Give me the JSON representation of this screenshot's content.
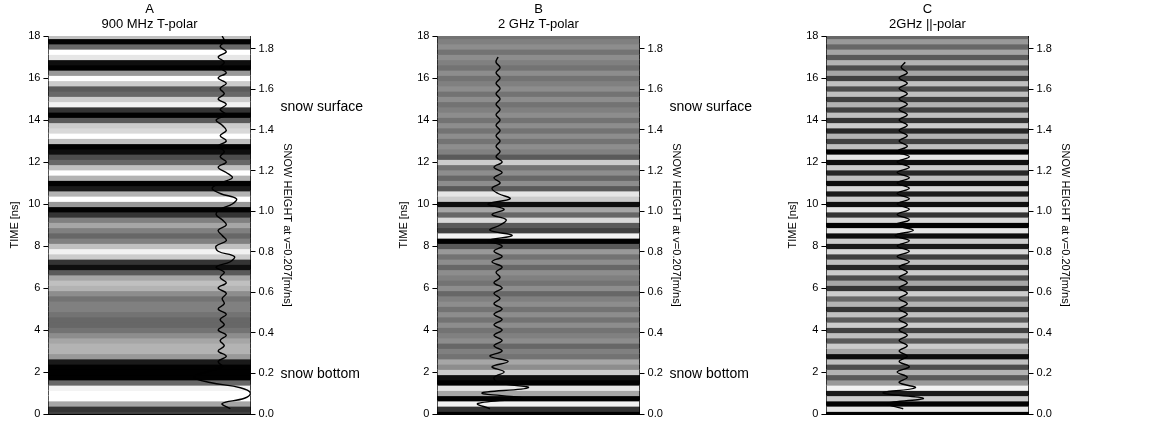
{
  "chart_data": [
    {
      "type": "line",
      "panel": "A",
      "title": "900 MHz T-polar",
      "y_label": "TIME [ns]",
      "y2_label": "SNOW HEIGHT at v=0.207[m/ns]",
      "xlim": [
        0,
        1
      ],
      "ylim": [
        0,
        18
      ],
      "yticks": [
        0,
        2,
        4,
        6,
        8,
        10,
        12,
        14,
        16,
        18
      ],
      "y2lim": [
        0,
        1.863
      ],
      "y2ticks": [
        {
          "value": 0,
          "label": "0.0"
        },
        0.2,
        0.4,
        0.6,
        0.8,
        {
          "value": 1,
          "label": "1.0"
        },
        1.2,
        1.4,
        1.6,
        1.8
      ],
      "grid": false,
      "tick_labels": "y",
      "color": "#000000",
      "annotations": [
        {
          "text": "snow surface",
          "y": 14.6
        },
        {
          "text": "snow bottom",
          "y": 1.9
        }
      ],
      "time": [
        0,
        0.25,
        0.5,
        0.75,
        1,
        1.25,
        1.5,
        1.75,
        2,
        2.25,
        2.5,
        2.75,
        3,
        3.25,
        3.5,
        3.75,
        4,
        4.25,
        4.5,
        4.75,
        5,
        5.25,
        5.5,
        5.75,
        6,
        6.25,
        6.5,
        6.75,
        7,
        7.25,
        7.5,
        7.75,
        8,
        8.25,
        8.5,
        8.75,
        9,
        9.25,
        9.5,
        9.75,
        10,
        10.25,
        10.5,
        10.75,
        11,
        11.25,
        11.5,
        11.75,
        12,
        12.25,
        12.5,
        12.75,
        13,
        13.25,
        13.5,
        13.75,
        14,
        14.25,
        14.5,
        14.75,
        15,
        15.25,
        15.5,
        15.75,
        16,
        16.25,
        16.5,
        16.75,
        17,
        17.25,
        17.5,
        17.75,
        18
      ],
      "trace": [
        null,
        0.9,
        0.86,
        0.97,
        1.0,
        0.95,
        0.8,
        0.72,
        0.78,
        0.86,
        0.84,
        0.88,
        0.84,
        0.87,
        0.85,
        0.88,
        0.84,
        0.87,
        0.85,
        0.88,
        0.84,
        0.87,
        0.86,
        0.88,
        0.84,
        0.88,
        0.85,
        0.87,
        0.83,
        0.9,
        0.92,
        0.84,
        0.83,
        0.88,
        0.86,
        0.84,
        0.88,
        0.86,
        0.83,
        0.85,
        0.91,
        0.93,
        0.85,
        0.81,
        0.85,
        0.91,
        0.88,
        0.84,
        0.88,
        0.85,
        0.87,
        0.84,
        0.88,
        0.85,
        0.88,
        0.86,
        0.83,
        0.88,
        0.85,
        0.88,
        0.84,
        0.87,
        0.85,
        0.88,
        0.84,
        0.88,
        0.85,
        0.87,
        0.84,
        0.88,
        0.85,
        0.87,
        0.86
      ],
      "image": [
        -0.5,
        -0.6,
        0.3,
        1,
        1,
        0.9,
        -0.2,
        -1,
        -1,
        -1,
        -0.8,
        0.2,
        0.4,
        0.4,
        0.3,
        0.1,
        -0.1,
        -0.2,
        -0.2,
        -0.1,
        0,
        0,
        -0.1,
        0.1,
        0.4,
        0.5,
        0.3,
        -0.3,
        -0.9,
        -0.6,
        0.6,
        0.9,
        0.5,
        0,
        -0.2,
        0,
        0.3,
        0,
        -0.6,
        -1,
        0.2,
        1,
        0.4,
        -0.8,
        -1,
        0.4,
        1,
        0.5,
        -0.2,
        -0.4,
        -0.9,
        -1,
        0.5,
        1,
        0.7,
        0.6,
        -0.3,
        -1,
        -0.6,
        0.9,
        0.6,
        -0.2,
        -0.3,
        0.6,
        1,
        0.2,
        -1,
        -0.9,
        0.8,
        1,
        -0.2,
        -1,
        0.5
      ]
    },
    {
      "type": "line",
      "panel": "B",
      "title": "2 GHz T-polar",
      "y_label": "TIME [ns]",
      "y2_label": "SNOW HEIGHT at v=0.207[m/ns]",
      "xlim": [
        0,
        1
      ],
      "ylim": [
        0,
        18
      ],
      "yticks": [
        0,
        2,
        4,
        6,
        8,
        10,
        12,
        14,
        16,
        18
      ],
      "y2lim": [
        0,
        1.863
      ],
      "y2ticks": [
        {
          "value": 0,
          "label": "0.0"
        },
        0.2,
        0.4,
        0.6,
        0.8,
        {
          "value": 1,
          "label": "1.0"
        },
        1.2,
        1.4,
        1.6,
        1.8
      ],
      "grid": false,
      "tick_labels": "y",
      "color": "#000000",
      "annotations": [
        {
          "text": "snow surface",
          "y": 14.6
        },
        {
          "text": "snow bottom",
          "y": 1.9
        }
      ],
      "time": [
        0,
        0.25,
        0.5,
        0.75,
        1,
        1.25,
        1.5,
        1.75,
        2,
        2.25,
        2.5,
        2.75,
        3,
        3.25,
        3.5,
        3.75,
        4,
        4.25,
        4.5,
        4.75,
        5,
        5.25,
        5.5,
        5.75,
        6,
        6.25,
        6.5,
        6.75,
        7,
        7.25,
        7.5,
        7.75,
        8,
        8.25,
        8.5,
        8.75,
        9,
        9.25,
        9.5,
        9.75,
        10,
        10.25,
        10.5,
        10.75,
        11,
        11.25,
        11.5,
        11.75,
        12,
        12.25,
        12.5,
        12.75,
        13,
        13.25,
        13.5,
        13.75,
        14,
        14.25,
        14.5,
        14.75,
        15,
        15.25,
        15.5,
        15.75,
        16,
        16.25,
        16.5,
        16.75,
        17,
        17.25,
        17.5,
        17.75,
        18
      ],
      "trace": [
        null,
        0.26,
        0.2,
        0.42,
        0.22,
        0.45,
        0.3,
        0.28,
        0.33,
        0.27,
        0.35,
        0.26,
        0.32,
        0.28,
        0.32,
        0.28,
        0.32,
        0.28,
        0.32,
        0.28,
        0.32,
        0.28,
        0.31,
        0.28,
        0.32,
        0.28,
        0.31,
        0.29,
        0.32,
        0.27,
        0.32,
        0.28,
        0.32,
        0.25,
        0.37,
        0.26,
        0.31,
        0.34,
        0.27,
        0.33,
        0.25,
        0.36,
        0.3,
        0.27,
        0.31,
        0.28,
        0.32,
        0.28,
        0.32,
        0.29,
        0.31,
        0.29,
        0.31,
        0.29,
        0.31,
        0.29,
        0.31,
        0.29,
        0.31,
        0.29,
        0.31,
        0.29,
        0.31,
        0.29,
        0.31,
        0.29,
        0.31,
        0.29,
        0.3,
        null,
        null,
        null,
        null
      ],
      "image": [
        -1,
        -0.6,
        0.9,
        -1,
        0.3,
        0.8,
        -1,
        -0.9,
        0.6,
        0.1,
        0.3,
        -0.1,
        0,
        -0.2,
        0.1,
        0,
        -0.1,
        0.1,
        -0.1,
        0.1,
        -0.1,
        0.1,
        0,
        -0.2,
        0.1,
        -0.1,
        0,
        0.1,
        -0.2,
        0.1,
        -0.1,
        0.2,
        -0.3,
        -1,
        0.9,
        -0.5,
        -0.3,
        0.7,
        -0.2,
        0.3,
        -0.9,
        0.6,
        0.8,
        -0.3,
        0.1,
        -0.2,
        0.1,
        -0.1,
        0.6,
        -0.3,
        0,
        0.1,
        -0.1,
        0.1,
        -0.1,
        0.1,
        -0.1,
        0.1,
        0,
        -0.1,
        0.1,
        -0.1,
        0.1,
        0,
        -0.1,
        0.1,
        -0.1,
        0,
        0.1,
        -0.1,
        0.1,
        0,
        -0.1
      ]
    },
    {
      "type": "line",
      "panel": "C",
      "title": "2GHz ||-polar",
      "y_label": "TIME [ns]",
      "y2_label": "SNOW HEIGHT at v=0.207[m/ns]",
      "xlim": [
        0,
        1
      ],
      "ylim": [
        0,
        18
      ],
      "yticks": [
        0,
        2,
        4,
        6,
        8,
        10,
        12,
        14,
        16,
        18
      ],
      "y2lim": [
        0,
        1.863
      ],
      "y2ticks": [
        {
          "value": 0,
          "label": "0.0"
        },
        0.2,
        0.4,
        0.6,
        0.8,
        {
          "value": 1,
          "label": "1.0"
        },
        1.2,
        1.4,
        1.6,
        1.8
      ],
      "grid": false,
      "tick_labels": "y",
      "color": "#000000",
      "time": [
        0,
        0.25,
        0.5,
        0.75,
        1,
        1.25,
        1.5,
        1.75,
        2,
        2.25,
        2.5,
        2.75,
        3,
        3.25,
        3.5,
        3.75,
        4,
        4.25,
        4.5,
        4.75,
        5,
        5.25,
        5.5,
        5.75,
        6,
        6.25,
        6.5,
        6.75,
        7,
        7.25,
        7.5,
        7.75,
        8,
        8.25,
        8.5,
        8.75,
        9,
        9.25,
        9.5,
        9.75,
        10,
        10.25,
        10.5,
        10.75,
        11,
        11.25,
        11.5,
        11.75,
        12,
        12.25,
        12.5,
        12.75,
        13,
        13.25,
        13.5,
        13.75,
        14,
        14.25,
        14.5,
        14.75,
        15,
        15.25,
        15.5,
        15.75,
        16,
        16.25,
        16.5,
        16.75,
        17,
        17.25,
        17.5,
        17.75,
        18
      ],
      "trace": [
        null,
        0.38,
        0.3,
        0.48,
        0.28,
        0.44,
        0.36,
        0.4,
        0.35,
        0.41,
        0.36,
        0.4,
        0.36,
        0.4,
        0.36,
        0.4,
        0.36,
        0.4,
        0.36,
        0.4,
        0.36,
        0.4,
        0.36,
        0.4,
        0.36,
        0.4,
        0.36,
        0.4,
        0.36,
        0.41,
        0.35,
        0.41,
        0.35,
        0.41,
        0.34,
        0.43,
        0.34,
        0.41,
        0.35,
        0.41,
        0.35,
        0.41,
        0.35,
        0.41,
        0.35,
        0.41,
        0.35,
        0.41,
        0.35,
        0.41,
        0.35,
        0.4,
        0.36,
        0.4,
        0.36,
        0.4,
        0.36,
        0.4,
        0.36,
        0.4,
        0.36,
        0.4,
        0.36,
        0.4,
        0.36,
        0.4,
        0.37,
        0.39,
        null,
        null,
        null,
        null,
        null
      ],
      "image": [
        -1,
        0.8,
        -1,
        0.6,
        -0.8,
        0.9,
        0.2,
        -0.3,
        0.4,
        -0.4,
        0.5,
        -0.9,
        0.3,
        0.6,
        -0.3,
        0.5,
        -0.5,
        0.6,
        -0.3,
        0.5,
        -0.6,
        0.4,
        -0.2,
        0.6,
        -0.6,
        0.3,
        -0.4,
        0.6,
        -0.7,
        0.5,
        -0.5,
        0.7,
        -0.8,
        0.6,
        -0.9,
        0.8,
        -1,
        0.7,
        -0.6,
        0.8,
        -0.9,
        0.6,
        -0.8,
        0.7,
        -0.9,
        0.5,
        -0.7,
        0.6,
        -0.9,
        0.8,
        -1,
        0.5,
        -0.5,
        0.4,
        -0.7,
        0.6,
        -0.6,
        0.5,
        -0.5,
        0.4,
        -0.5,
        0.5,
        -0.4,
        0.5,
        -0.5,
        0.3,
        -0.4,
        0.4,
        -0.3,
        0.3,
        -0.2,
        0.2,
        -0.2
      ]
    }
  ]
}
